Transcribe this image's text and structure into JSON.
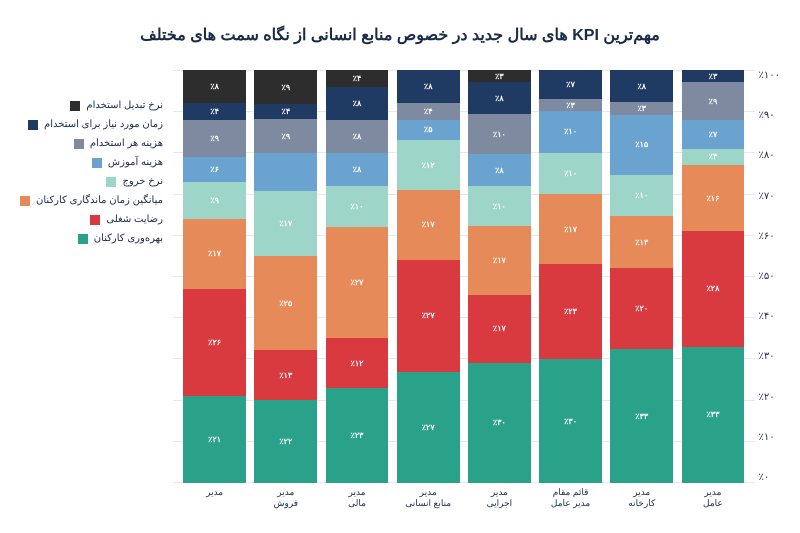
{
  "title": "مهم‌ترین KPI های سال جدید در خصوص منابع انسانی از نگاه سمت های مختلف",
  "chart": {
    "type": "stacked-bar",
    "background_color": "#ffffff",
    "grid_color": "#e6e8ec",
    "title_fontsize": 16,
    "label_fontsize": 10,
    "value_label_fontsize": 8,
    "ylim": [
      0,
      100
    ],
    "ytick_step": 10,
    "yticks": [
      "٪۱۰۰",
      "٪۹۰",
      "٪۸۰",
      "٪۷۰",
      "٪۶۰",
      "٪۵۰",
      "٪۴۰",
      "٪۳۰",
      "٪۲۰",
      "٪۱۰",
      "٪۰"
    ],
    "series": [
      {
        "key": "productivity",
        "label": "بهره‌وری کارکنان",
        "color": "#2aa28a"
      },
      {
        "key": "satisfaction",
        "label": "رضایت شغلی",
        "color": "#d93a3f"
      },
      {
        "key": "tenure",
        "label": "میانگین زمان ماندگاری کارکنان",
        "color": "#e68a5a"
      },
      {
        "key": "turnover",
        "label": "نرخ خروج",
        "color": "#9dd6c8"
      },
      {
        "key": "training_cost",
        "label": "هزینه آموزش",
        "color": "#6aa3cf"
      },
      {
        "key": "cost_per_hire",
        "label": "هزینه هر استخدام",
        "color": "#7d8aa0"
      },
      {
        "key": "time_to_hire",
        "label": "زمان مورد نیاز برای استخدام",
        "color": "#1f3a63"
      },
      {
        "key": "conv_rate",
        "label": "نرخ تبدیل استخدام",
        "color": "#2d2d2d"
      }
    ],
    "categories": [
      {
        "label": "مدیر\nعامل",
        "values": {
          "productivity": 33,
          "satisfaction": 28,
          "tenure": 16,
          "turnover": 4,
          "training_cost": 7,
          "cost_per_hire": 9,
          "time_to_hire": 3,
          "conv_rate": 0
        },
        "value_labels": {
          "productivity": "٪۳۳",
          "satisfaction": "٪۲۸",
          "tenure": "٪۱۶",
          "turnover": "٪۴",
          "training_cost": "٪۷",
          "cost_per_hire": "٪۹",
          "time_to_hire": "٪۳",
          "conv_rate": ""
        }
      },
      {
        "label": "مدیر\nکارخانه",
        "values": {
          "productivity": 33,
          "satisfaction": 20,
          "tenure": 13,
          "turnover": 10,
          "training_cost": 15,
          "cost_per_hire": 3,
          "time_to_hire": 8,
          "conv_rate": 0
        },
        "value_labels": {
          "productivity": "٪۳۳",
          "satisfaction": "٪۲۰",
          "tenure": "٪۱۳",
          "turnover": "٪۱۰",
          "training_cost": "٪۱۵",
          "cost_per_hire": "٪۳",
          "time_to_hire": "٪۸",
          "conv_rate": ""
        }
      },
      {
        "label": "قائم مقام\nمدیر عامل",
        "values": {
          "productivity": 30,
          "satisfaction": 23,
          "tenure": 17,
          "turnover": 10,
          "training_cost": 10,
          "cost_per_hire": 3,
          "time_to_hire": 7,
          "conv_rate": 0
        },
        "value_labels": {
          "productivity": "٪۳۰",
          "satisfaction": "٪۲۳",
          "tenure": "٪۱۷",
          "turnover": "٪۱۰",
          "training_cost": "٪۱۰",
          "cost_per_hire": "٪۳",
          "time_to_hire": "٪۷",
          "conv_rate": ""
        }
      },
      {
        "label": "مدیر\nاجرایی",
        "values": {
          "productivity": 30,
          "satisfaction": 17,
          "tenure": 17,
          "turnover": 10,
          "training_cost": 8,
          "cost_per_hire": 10,
          "time_to_hire": 8,
          "conv_rate": 3
        },
        "value_labels": {
          "productivity": "٪۳۰",
          "satisfaction": "٪۱۷",
          "tenure": "٪۱۷",
          "turnover": "٪۱۰",
          "training_cost": "٪۸",
          "cost_per_hire": "٪۱۰",
          "time_to_hire": "٪۸",
          "conv_rate": "٪۳"
        }
      },
      {
        "label": "مدیر\nمنابع انسانی",
        "values": {
          "productivity": 27,
          "satisfaction": 27,
          "tenure": 17,
          "turnover": 12,
          "training_cost": 5,
          "cost_per_hire": 4,
          "time_to_hire": 8,
          "conv_rate": 0
        },
        "value_labels": {
          "productivity": "٪۲۷",
          "satisfaction": "٪۲۷",
          "tenure": "٪۱۷",
          "turnover": "٪۱۲",
          "training_cost": "٪۵",
          "cost_per_hire": "٪۴",
          "time_to_hire": "٪۸",
          "conv_rate": ""
        }
      },
      {
        "label": "مدیر\nمالی",
        "values": {
          "productivity": 23,
          "satisfaction": 12,
          "tenure": 27,
          "turnover": 10,
          "training_cost": 8,
          "cost_per_hire": 8,
          "time_to_hire": 8,
          "conv_rate": 4
        },
        "value_labels": {
          "productivity": "٪۲۳",
          "satisfaction": "٪۱۲",
          "tenure": "٪۲۷",
          "turnover": "٪۱۰",
          "training_cost": "٪۸",
          "cost_per_hire": "٪۸",
          "time_to_hire": "٪۸",
          "conv_rate": "٪۴"
        }
      },
      {
        "label": "مدیر\nفروش",
        "values": {
          "productivity": 22,
          "satisfaction": 13,
          "tenure": 25,
          "turnover": 17,
          "training_cost": 10,
          "cost_per_hire": 9,
          "time_to_hire": 4,
          "conv_rate": 9
        },
        "value_labels": {
          "productivity": "٪۲۲",
          "satisfaction": "٪۱۳",
          "tenure": "٪۲۵",
          "turnover": "٪۱۷",
          "training_cost": "",
          "cost_per_hire": "٪۹",
          "time_to_hire": "٪۴",
          "conv_rate": "٪۹"
        }
      },
      {
        "label": "مدیر",
        "values": {
          "productivity": 21,
          "satisfaction": 26,
          "tenure": 17,
          "turnover": 9,
          "training_cost": 6,
          "cost_per_hire": 9,
          "time_to_hire": 4,
          "conv_rate": 8
        },
        "value_labels": {
          "productivity": "٪۲۱",
          "satisfaction": "٪۲۶",
          "tenure": "٪۱۷",
          "turnover": "٪۹",
          "training_cost": "٪۶",
          "cost_per_hire": "٪۹",
          "time_to_hire": "٪۴",
          "conv_rate": "٪۸"
        }
      }
    ]
  }
}
